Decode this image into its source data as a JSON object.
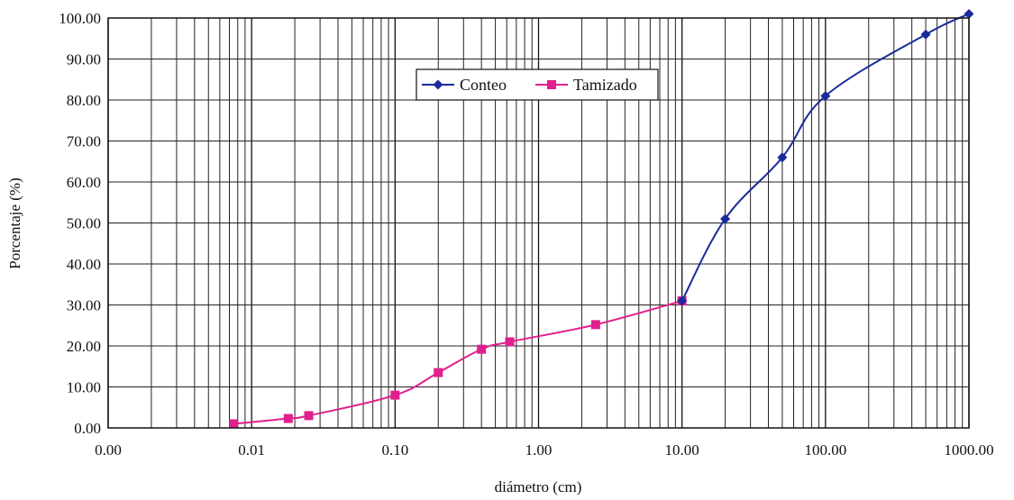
{
  "chart_data": {
    "type": "line",
    "xscale": "log",
    "xlim": [
      0.001,
      1000
    ],
    "ylim": [
      0,
      100
    ],
    "grid": true,
    "xlabel": "diámetro (cm)",
    "ylabel": "Porcentaje (%)",
    "x_tick_labels": [
      "0.00",
      "0.01",
      "0.10",
      "1.00",
      "10.00",
      "100.00",
      "1000.00"
    ],
    "y_tick_labels": [
      "0.00",
      "10.00",
      "20.00",
      "30.00",
      "40.00",
      "50.00",
      "60.00",
      "70.00",
      "80.00",
      "90.00",
      "100.00"
    ],
    "legend_position": "top-center",
    "series": [
      {
        "name": "Conteo",
        "color": "#1a2a9a",
        "marker": "diamond",
        "x": [
          10,
          20,
          50,
          100,
          500,
          1000
        ],
        "y": [
          31,
          51,
          66,
          81,
          96,
          101
        ]
      },
      {
        "name": "Tamizado",
        "color": "#e0208c",
        "marker": "square",
        "x": [
          0.0075,
          0.018,
          0.025,
          0.1,
          0.2,
          0.4,
          0.63,
          2.5,
          10
        ],
        "y": [
          1,
          2.3,
          3,
          8,
          13.5,
          19.2,
          21,
          25.2,
          31
        ]
      }
    ]
  }
}
